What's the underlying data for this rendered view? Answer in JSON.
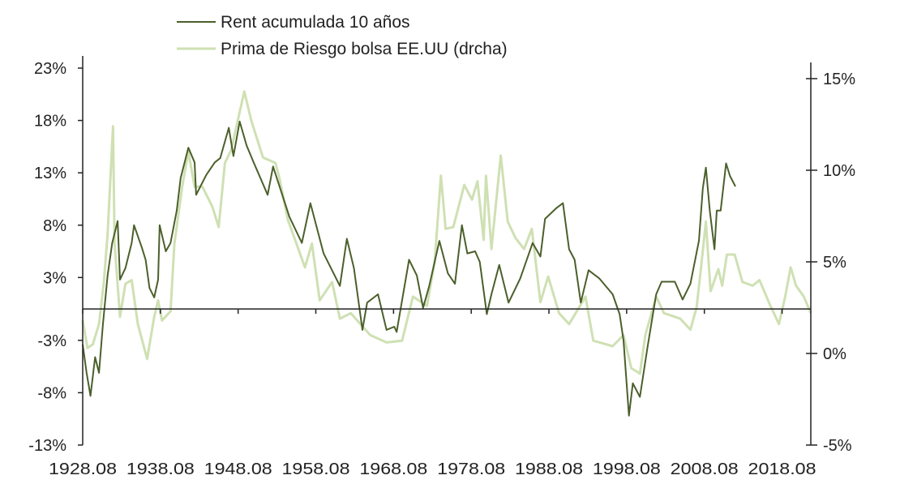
{
  "chart_data": {
    "type": "line",
    "title": "",
    "xlabel": "",
    "ylabel": "",
    "xlim": [
      1928.6,
      2022.3
    ],
    "ylim_left": [
      -13,
      23
    ],
    "ylim_right": [
      -5,
      15
    ],
    "x_tick_labels": [
      {
        "year": 1928.6,
        "label": "1928.08"
      },
      {
        "year": 1938.6,
        "label": "1938.08"
      },
      {
        "year": 1948.6,
        "label": "1948.08"
      },
      {
        "year": 1958.6,
        "label": "1958.08"
      },
      {
        "year": 1968.6,
        "label": "1968.08"
      },
      {
        "year": 1978.6,
        "label": "1978.08"
      },
      {
        "year": 1988.6,
        "label": "1988.08"
      },
      {
        "year": 1998.6,
        "label": "1998.08"
      },
      {
        "year": 2008.6,
        "label": "2008.08"
      },
      {
        "year": 2018.6,
        "label": "2018.08"
      }
    ],
    "left_ticks": [
      {
        "value": 23,
        "label": "23%"
      },
      {
        "value": 18,
        "label": "18%"
      },
      {
        "value": 13,
        "label": "13%"
      },
      {
        "value": 8,
        "label": "8%"
      },
      {
        "value": 3,
        "label": "3%"
      },
      {
        "value": -3,
        "label": "-3%"
      },
      {
        "value": -8,
        "label": "-8%"
      },
      {
        "value": -13,
        "label": "-13%"
      }
    ],
    "right_ticks": [
      {
        "value": 15,
        "label": "15%"
      },
      {
        "value": 10,
        "label": "10%"
      },
      {
        "value": 5,
        "label": "5%"
      },
      {
        "value": 0,
        "label": "0%"
      },
      {
        "value": -5,
        "label": "-5%"
      }
    ],
    "grid": false,
    "legend_position": "top-center",
    "series": [
      {
        "name": "Rent acumulada 10 años",
        "axis": "left",
        "color": "#4b5f2b",
        "points": [
          [
            1928.6,
            -3.4
          ],
          [
            1929.1,
            -6.1
          ],
          [
            1929.6,
            -8.3
          ],
          [
            1930.2,
            -4.6
          ],
          [
            1930.7,
            -6.1
          ],
          [
            1931.2,
            -1.5
          ],
          [
            1931.8,
            3.2
          ],
          [
            1932.4,
            6.3
          ],
          [
            1933.1,
            8.4
          ],
          [
            1933.4,
            2.8
          ],
          [
            1934.1,
            3.9
          ],
          [
            1934.9,
            6.3
          ],
          [
            1935.2,
            8.0
          ],
          [
            1936.2,
            5.9
          ],
          [
            1936.7,
            4.7
          ],
          [
            1937.2,
            2.0
          ],
          [
            1937.8,
            1.1
          ],
          [
            1938.3,
            2.8
          ],
          [
            1938.5,
            8.0
          ],
          [
            1939.3,
            5.5
          ],
          [
            1939.9,
            6.3
          ],
          [
            1940.7,
            9.4
          ],
          [
            1941.2,
            12.5
          ],
          [
            1942.2,
            15.4
          ],
          [
            1943.0,
            14.0
          ],
          [
            1943.2,
            10.9
          ],
          [
            1944.5,
            12.8
          ],
          [
            1945.6,
            14.0
          ],
          [
            1946.3,
            14.4
          ],
          [
            1947.4,
            17.3
          ],
          [
            1948.0,
            14.6
          ],
          [
            1948.8,
            17.9
          ],
          [
            1949.7,
            15.6
          ],
          [
            1950.6,
            14.0
          ],
          [
            1952.4,
            10.9
          ],
          [
            1953.1,
            13.6
          ],
          [
            1955.2,
            8.8
          ],
          [
            1956.8,
            6.3
          ],
          [
            1957.9,
            10.1
          ],
          [
            1959.6,
            5.3
          ],
          [
            1961.7,
            2.2
          ],
          [
            1962.6,
            6.7
          ],
          [
            1963.5,
            3.9
          ],
          [
            1964.6,
            -2.0
          ],
          [
            1965.2,
            0.6
          ],
          [
            1966.6,
            1.4
          ],
          [
            1967.7,
            -2.0
          ],
          [
            1968.7,
            -1.7
          ],
          [
            1969.0,
            -2.2
          ],
          [
            1970.6,
            4.7
          ],
          [
            1971.6,
            3.2
          ],
          [
            1972.4,
            0.1
          ],
          [
            1973.2,
            2.2
          ],
          [
            1974.5,
            6.5
          ],
          [
            1975.6,
            3.4
          ],
          [
            1976.5,
            2.4
          ],
          [
            1977.4,
            8.0
          ],
          [
            1978.1,
            5.3
          ],
          [
            1979.1,
            5.5
          ],
          [
            1979.7,
            4.5
          ],
          [
            1980.6,
            -0.5
          ],
          [
            1981.2,
            1.4
          ],
          [
            1982.2,
            4.2
          ],
          [
            1983.4,
            0.6
          ],
          [
            1984.9,
            2.9
          ],
          [
            1986.5,
            6.3
          ],
          [
            1987.5,
            5.0
          ],
          [
            1988.1,
            8.6
          ],
          [
            1989.5,
            9.6
          ],
          [
            1990.4,
            10.1
          ],
          [
            1991.2,
            5.7
          ],
          [
            1991.9,
            4.7
          ],
          [
            1992.7,
            0.6
          ],
          [
            1993.7,
            3.7
          ],
          [
            1995.1,
            2.9
          ],
          [
            1996.8,
            1.4
          ],
          [
            1997.7,
            -0.5
          ],
          [
            1998.2,
            -3.0
          ],
          [
            1998.9,
            -10.2
          ],
          [
            1999.4,
            -7.1
          ],
          [
            2000.3,
            -8.4
          ],
          [
            2001.3,
            -3.6
          ],
          [
            2002.4,
            1.4
          ],
          [
            2003.1,
            2.6
          ],
          [
            2004.8,
            2.6
          ],
          [
            2005.8,
            0.9
          ],
          [
            2006.8,
            2.4
          ],
          [
            2007.9,
            6.5
          ],
          [
            2008.4,
            11.5
          ],
          [
            2008.8,
            13.5
          ],
          [
            2009.3,
            9.4
          ],
          [
            2009.9,
            5.7
          ],
          [
            2010.2,
            9.4
          ],
          [
            2010.7,
            9.4
          ],
          [
            2011.4,
            13.9
          ],
          [
            2011.9,
            12.7
          ],
          [
            2012.6,
            11.7
          ]
        ]
      },
      {
        "name": "Prima de Riesgo bolsa EE.UU (drcha)",
        "axis": "right",
        "color": "#cfe0b3",
        "points": [
          [
            1928.6,
            1.8
          ],
          [
            1929.2,
            0.3
          ],
          [
            1929.9,
            0.5
          ],
          [
            1930.7,
            1.6
          ],
          [
            1931.3,
            3.8
          ],
          [
            1931.8,
            6.5
          ],
          [
            1932.5,
            12.4
          ],
          [
            1932.7,
            6.0
          ],
          [
            1933.4,
            2.0
          ],
          [
            1934.1,
            3.8
          ],
          [
            1934.9,
            4.0
          ],
          [
            1935.7,
            1.6
          ],
          [
            1936.9,
            -0.3
          ],
          [
            1937.8,
            2.0
          ],
          [
            1938.3,
            2.9
          ],
          [
            1938.8,
            1.8
          ],
          [
            1939.9,
            2.3
          ],
          [
            1940.4,
            6.0
          ],
          [
            1941.4,
            9.1
          ],
          [
            1942.2,
            11.0
          ],
          [
            1943.0,
            9.1
          ],
          [
            1944.0,
            9.1
          ],
          [
            1945.3,
            8.0
          ],
          [
            1946.1,
            6.9
          ],
          [
            1946.9,
            10.4
          ],
          [
            1947.7,
            11.1
          ],
          [
            1949.4,
            14.3
          ],
          [
            1950.3,
            12.7
          ],
          [
            1951.8,
            10.7
          ],
          [
            1953.4,
            10.4
          ],
          [
            1953.9,
            9.6
          ],
          [
            1955.0,
            7.3
          ],
          [
            1957.2,
            4.7
          ],
          [
            1958.1,
            6.0
          ],
          [
            1959.1,
            2.9
          ],
          [
            1960.7,
            3.9
          ],
          [
            1961.7,
            1.9
          ],
          [
            1963.1,
            2.2
          ],
          [
            1965.6,
            1.0
          ],
          [
            1967.7,
            0.6
          ],
          [
            1969.7,
            0.7
          ],
          [
            1971.1,
            3.1
          ],
          [
            1972.9,
            2.6
          ],
          [
            1973.9,
            5.0
          ],
          [
            1974.7,
            9.7
          ],
          [
            1975.3,
            6.8
          ],
          [
            1976.3,
            6.9
          ],
          [
            1977.7,
            9.2
          ],
          [
            1978.7,
            8.4
          ],
          [
            1979.4,
            9.4
          ],
          [
            1980.2,
            6.2
          ],
          [
            1980.5,
            9.7
          ],
          [
            1981.2,
            5.7
          ],
          [
            1982.4,
            10.8
          ],
          [
            1983.3,
            7.2
          ],
          [
            1984.3,
            6.3
          ],
          [
            1985.4,
            5.7
          ],
          [
            1986.4,
            6.8
          ],
          [
            1987.5,
            2.8
          ],
          [
            1988.5,
            4.2
          ],
          [
            1989.9,
            2.2
          ],
          [
            1991.2,
            1.6
          ],
          [
            1993.3,
            3.1
          ],
          [
            1994.3,
            0.7
          ],
          [
            1996.8,
            0.4
          ],
          [
            1998.2,
            1.0
          ],
          [
            1999.2,
            -0.8
          ],
          [
            2000.3,
            -1.1
          ],
          [
            2001.0,
            1.0
          ],
          [
            2002.4,
            3.1
          ],
          [
            2003.4,
            2.2
          ],
          [
            2005.5,
            1.9
          ],
          [
            2006.8,
            1.3
          ],
          [
            2007.6,
            2.5
          ],
          [
            2008.1,
            4.4
          ],
          [
            2008.8,
            7.2
          ],
          [
            2009.4,
            3.4
          ],
          [
            2010.4,
            4.6
          ],
          [
            2010.9,
            3.7
          ],
          [
            2011.5,
            5.4
          ],
          [
            2012.5,
            5.4
          ],
          [
            2013.5,
            3.9
          ],
          [
            2014.8,
            3.7
          ],
          [
            2015.7,
            4.0
          ],
          [
            2016.9,
            2.8
          ],
          [
            2018.2,
            1.6
          ],
          [
            2019.0,
            3.1
          ],
          [
            2019.7,
            4.7
          ],
          [
            2020.4,
            3.7
          ],
          [
            2021.4,
            3.1
          ],
          [
            2022.3,
            2.2
          ]
        ]
      }
    ]
  }
}
